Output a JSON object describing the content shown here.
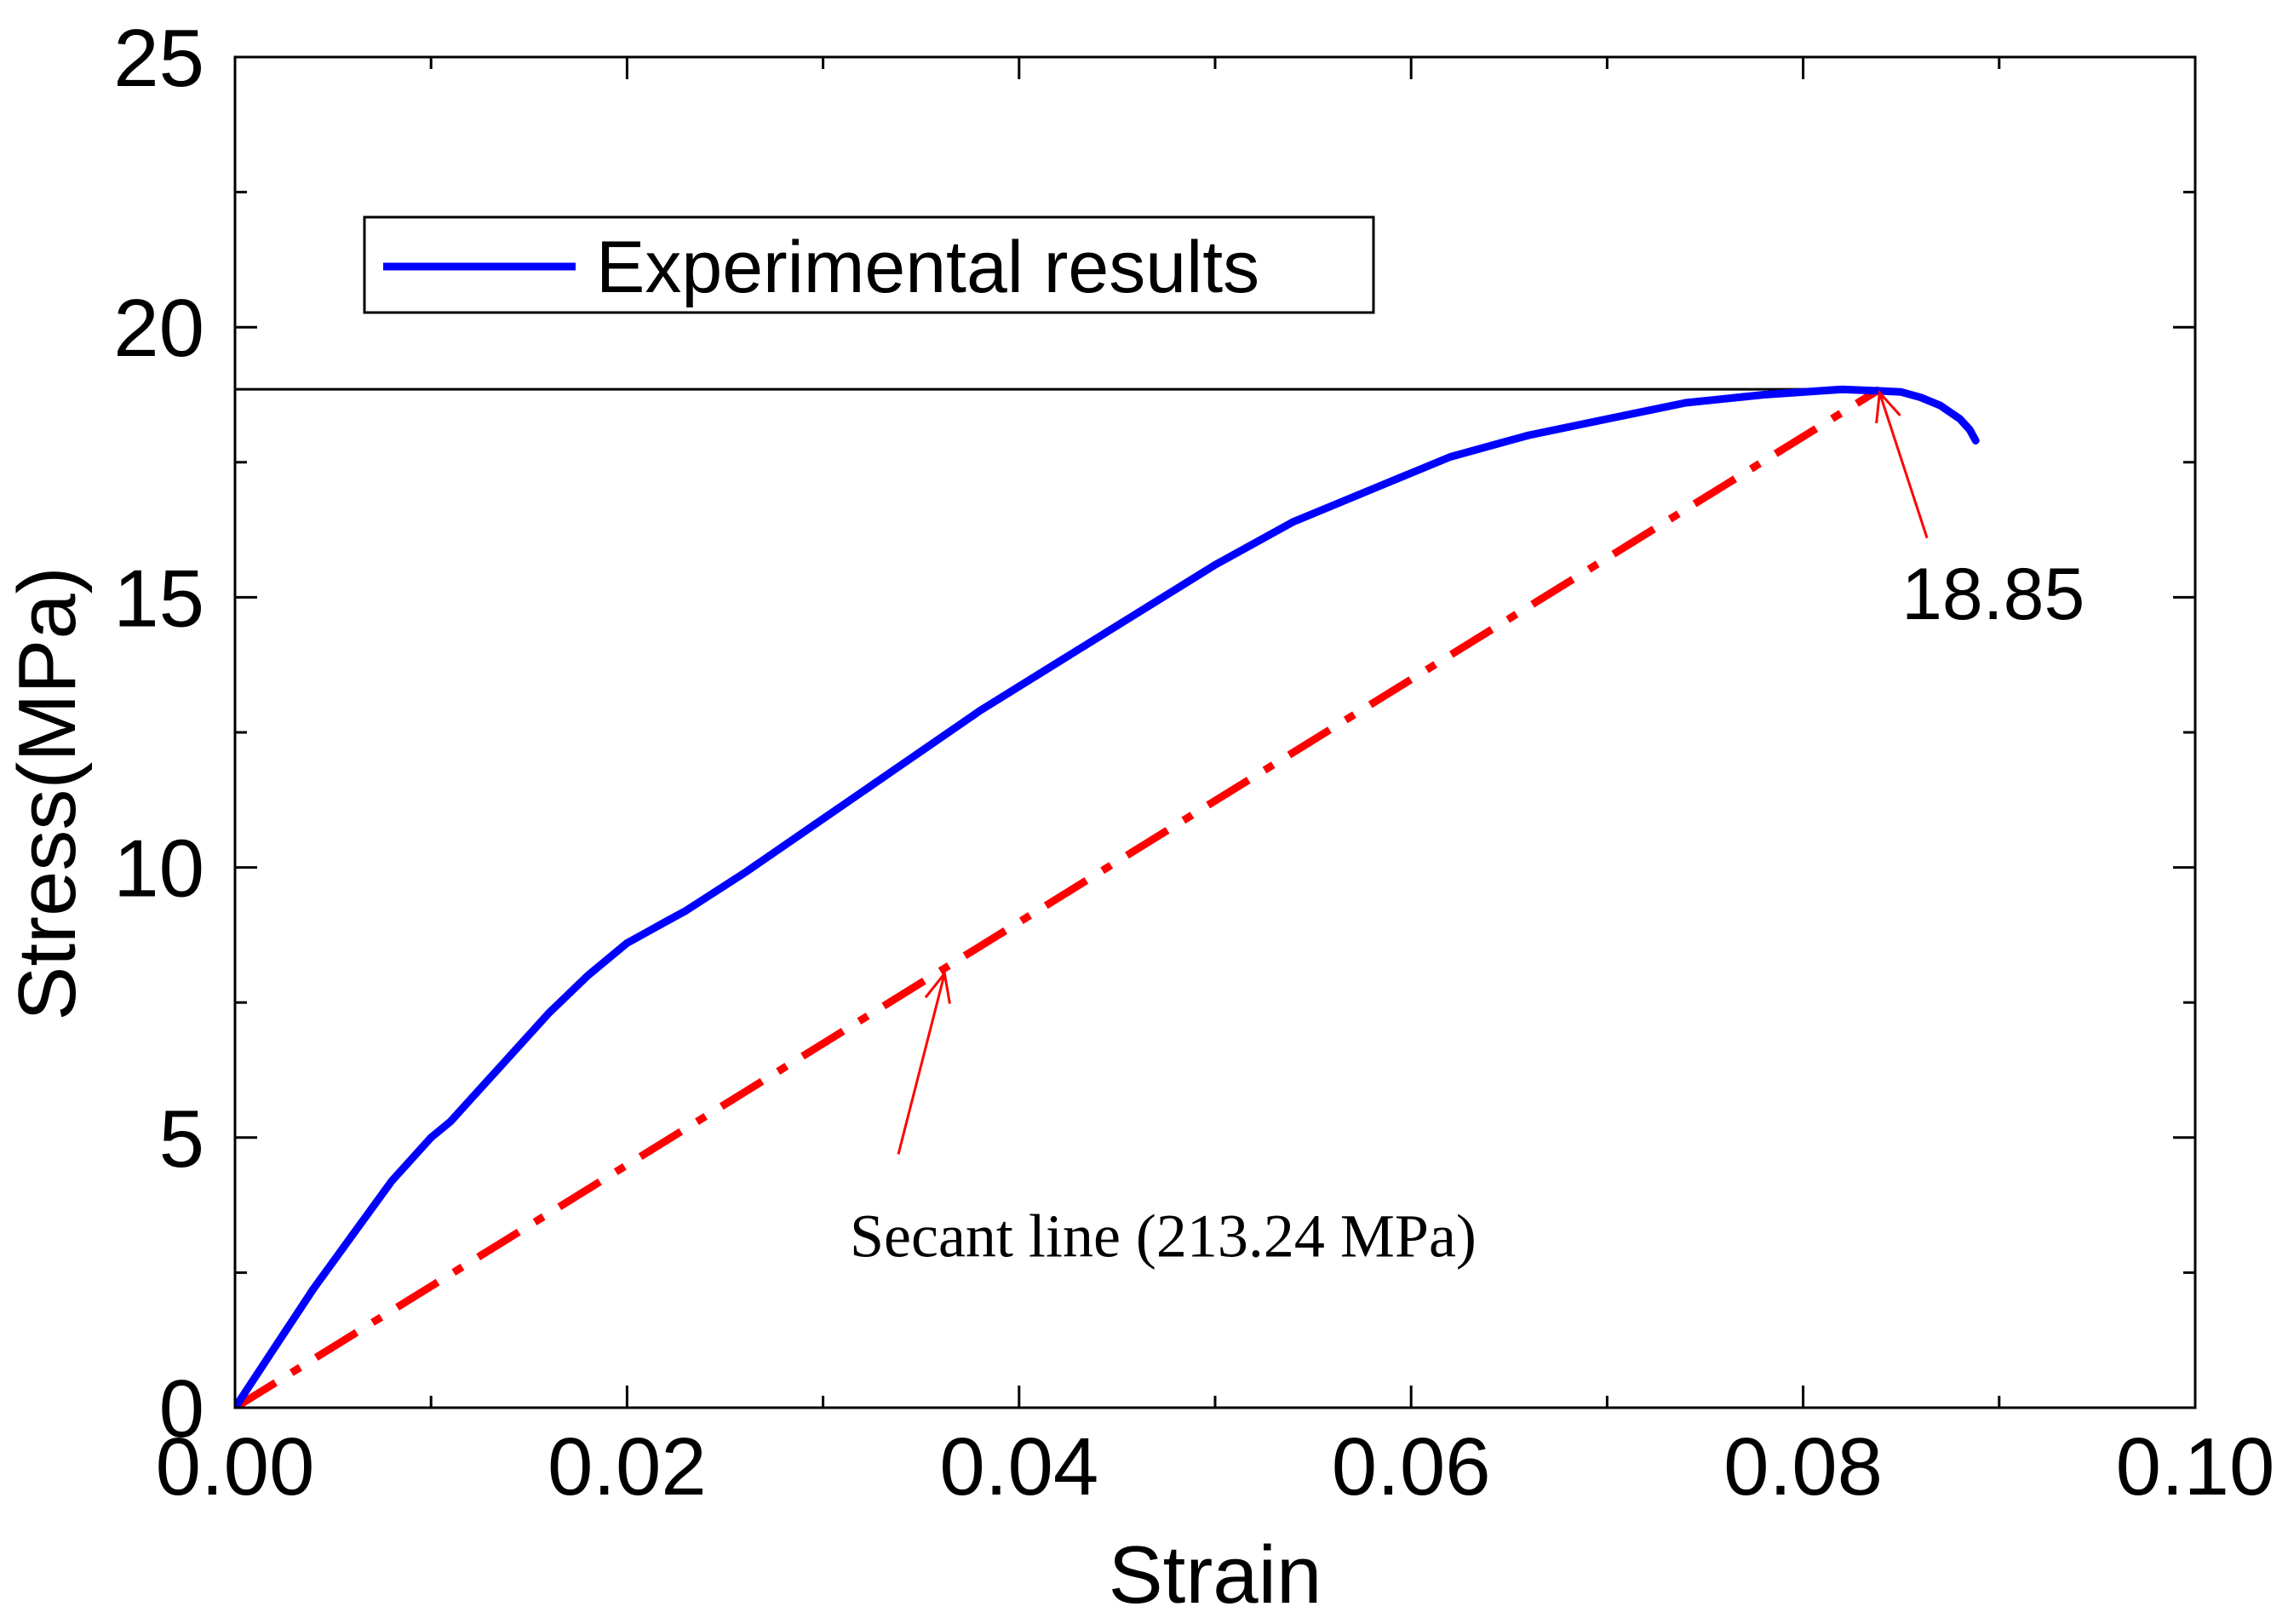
{
  "chart_data": {
    "type": "line",
    "title": "",
    "xlabel": "Strain",
    "ylabel": "Stress(MPa)",
    "xlim": [
      0.0,
      0.1
    ],
    "ylim": [
      0,
      25
    ],
    "x_ticks": [
      "0.00",
      "0.02",
      "0.04",
      "0.06",
      "0.08",
      "0.10"
    ],
    "y_ticks": [
      "0",
      "5",
      "10",
      "15",
      "20",
      "25"
    ],
    "x_tick_values": [
      0.0,
      0.02,
      0.04,
      0.06,
      0.08,
      0.1
    ],
    "y_tick_values": [
      0,
      5,
      10,
      15,
      20,
      25
    ],
    "x_minor_tick_values": [
      0.01,
      0.03,
      0.05,
      0.07,
      0.09
    ],
    "y_minor_tick_values": [
      2.5,
      7.5,
      12.5,
      17.5,
      22.5
    ],
    "grid": false,
    "legend": {
      "position": "top-left",
      "entries": [
        "Experimental results"
      ]
    },
    "series": [
      {
        "name": "Experimental results",
        "color": "#0000ff",
        "x": [
          0,
          0.002,
          0.004,
          0.006,
          0.008,
          0.01,
          0.011,
          0.012,
          0.014,
          0.016,
          0.018,
          0.02,
          0.022,
          0.023,
          0.026,
          0.03,
          0.034,
          0.038,
          0.042,
          0.046,
          0.05,
          0.054,
          0.058,
          0.062,
          0.066,
          0.07,
          0.074,
          0.078,
          0.082,
          0.084,
          0.085,
          0.086,
          0.087,
          0.088,
          0.0885,
          0.0888
        ],
        "y": [
          0,
          1.1,
          2.2,
          3.2,
          4.2,
          5.0,
          5.3,
          5.7,
          6.5,
          7.3,
          8.0,
          8.6,
          9.0,
          9.2,
          9.9,
          10.9,
          11.9,
          12.9,
          13.8,
          14.7,
          15.6,
          16.4,
          17.0,
          17.6,
          18.0,
          18.3,
          18.6,
          18.75,
          18.85,
          18.82,
          18.8,
          18.7,
          18.55,
          18.3,
          18.1,
          17.9
        ]
      }
    ],
    "reference_lines": {
      "peak_line": {
        "y": 18.85,
        "x_end": 0.0824,
        "color": "#000000"
      },
      "secant_line": {
        "x": [
          0,
          0.0839
        ],
        "y": [
          0,
          18.85
        ],
        "color": "#ff0000",
        "style": "dash-dot"
      }
    },
    "annotations": [
      {
        "text": "18.85",
        "x": 0.0848,
        "y": 14.6,
        "arrow_to": [
          0.0839,
          18.85
        ],
        "color": "#ff0000"
      },
      {
        "text": "Secant line (213.24 MPa)",
        "x": 0.051,
        "y": 2.8,
        "arrow_to": [
          0.0362,
          8.1
        ],
        "color": "#ff0000"
      }
    ]
  }
}
